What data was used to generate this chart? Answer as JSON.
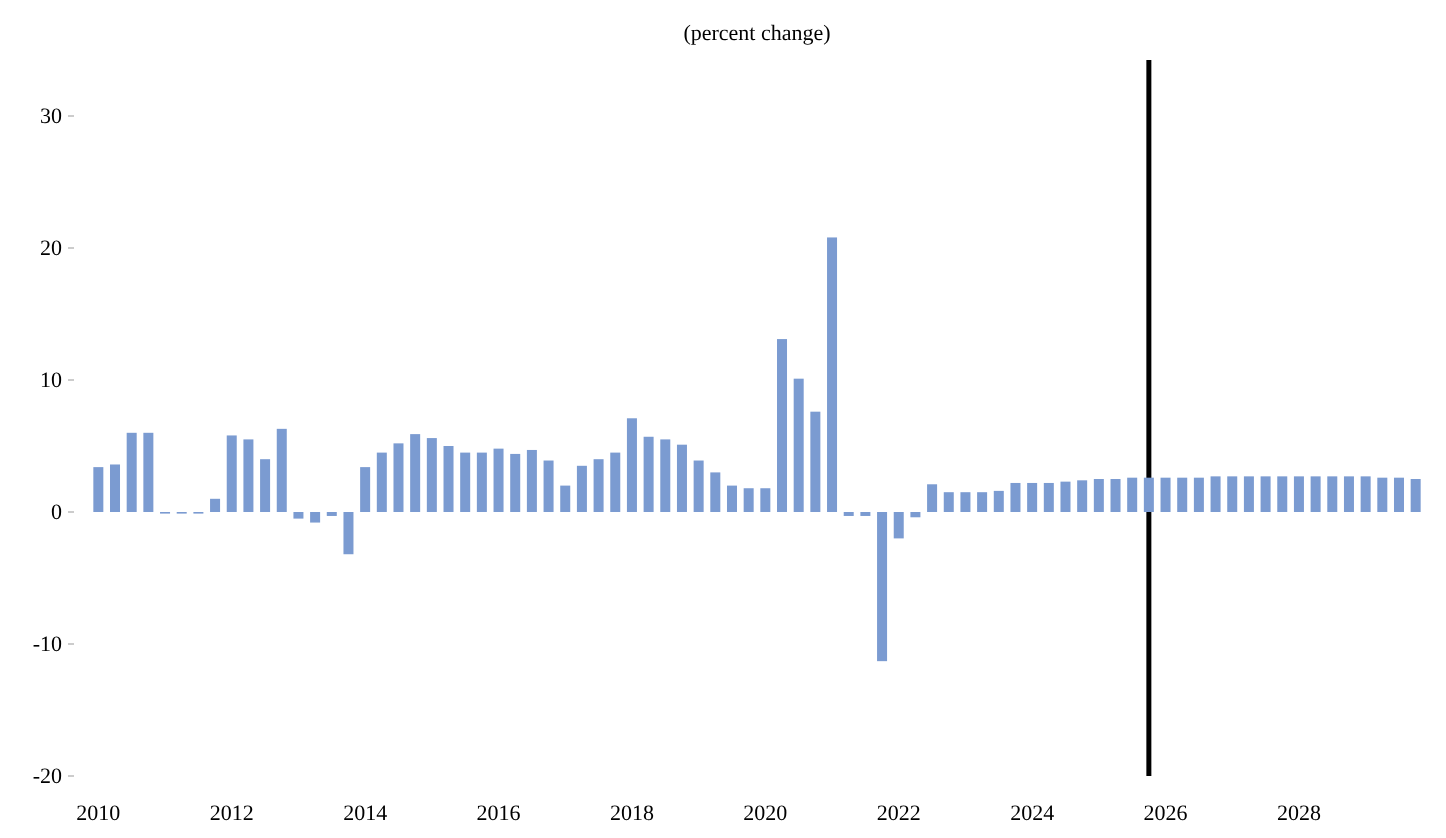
{
  "chart_data": {
    "type": "bar",
    "title": "(percent change)",
    "x": [
      2010,
      2010.25,
      2010.5,
      2010.75,
      2011,
      2011.25,
      2011.5,
      2011.75,
      2012,
      2012.25,
      2012.5,
      2012.75,
      2013,
      2013.25,
      2013.5,
      2013.75,
      2014,
      2014.25,
      2014.5,
      2014.75,
      2015,
      2015.25,
      2015.5,
      2015.75,
      2016,
      2016.25,
      2016.5,
      2016.75,
      2017,
      2017.25,
      2017.5,
      2017.75,
      2018,
      2018.25,
      2018.5,
      2018.75,
      2019,
      2019.25,
      2019.5,
      2019.75,
      2020,
      2020.25,
      2020.5,
      2020.75,
      2021,
      2021.25,
      2021.5,
      2021.75,
      2022,
      2022.25,
      2022.5,
      2022.75,
      2023,
      2023.25,
      2023.5,
      2023.75,
      2024,
      2024.25,
      2024.5,
      2024.75,
      2025,
      2025.25,
      2025.5,
      2025.75,
      2026,
      2026.25,
      2026.5,
      2026.75,
      2027,
      2027.25,
      2027.5,
      2027.75,
      2028,
      2028.25,
      2028.5,
      2028.75,
      2029,
      2029.25,
      2029.5,
      2029.75
    ],
    "values": [
      3.4,
      3.6,
      6.0,
      6.0,
      0,
      0,
      0,
      1.0,
      5.8,
      5.5,
      4.0,
      6.3,
      -0.5,
      -0.8,
      -0.3,
      -3.2,
      3.4,
      4.5,
      5.2,
      5.9,
      5.6,
      5.0,
      4.5,
      4.5,
      4.8,
      4.4,
      4.7,
      3.9,
      2.0,
      3.5,
      4.0,
      4.5,
      7.1,
      5.7,
      5.5,
      5.1,
      3.9,
      3.0,
      2.0,
      1.8,
      1.8,
      13.1,
      10.1,
      7.6,
      20.8,
      -0.3,
      -0.3,
      -11.3,
      -2.0,
      -0.4,
      2.1,
      1.5,
      1.5,
      1.5,
      1.6,
      2.2,
      2.2,
      2.2,
      2.3,
      2.4,
      2.5,
      2.5,
      2.6,
      2.6,
      2.6,
      2.6,
      2.6,
      2.7,
      2.7,
      2.7,
      2.7,
      2.7,
      2.7,
      2.7,
      2.7,
      2.7,
      2.7,
      2.6,
      2.6,
      2.5
    ],
    "color": "#7b9bd1",
    "xlim": [
      2009.875,
      2029.875
    ],
    "xticks": [
      2010,
      2012,
      2014,
      2016,
      2018,
      2020,
      2022,
      2024,
      2026,
      2028
    ],
    "ylim": [
      -20,
      30
    ],
    "yticks": [
      -20,
      -10,
      0,
      10,
      20,
      30
    ],
    "ref_lines": [
      {
        "axis": "x",
        "value": 2025.75,
        "color": "#000000"
      }
    ],
    "grid": false
  }
}
